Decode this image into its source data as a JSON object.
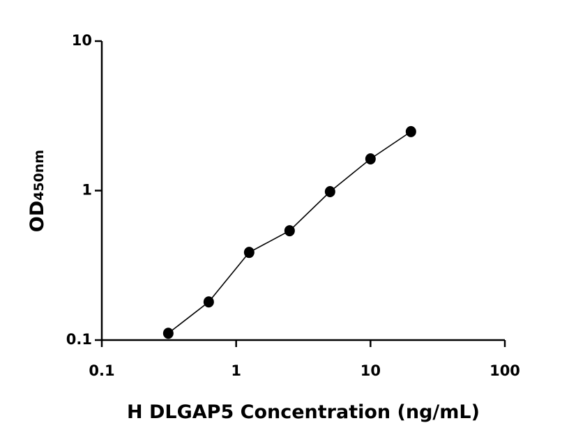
{
  "chart_data": {
    "type": "scatter",
    "xlabel": "H DLGAP5 Concentration (ng/mL)",
    "ylabel": "OD",
    "ylabel_subscript": "450nm",
    "xscale": "log",
    "yscale": "log",
    "xlim": [
      0.1,
      100
    ],
    "xticks": [
      0.1,
      1,
      10,
      100
    ],
    "ylim": [
      0.1,
      10
    ],
    "yticks": [
      0.1,
      1,
      10
    ],
    "fit_line": true,
    "color": "#000000",
    "series": [
      {
        "x": [
          0.3125,
          0.625,
          1.25,
          2.5,
          5,
          10,
          20
        ],
        "values": [
          0.111,
          0.18,
          0.386,
          0.539,
          0.984,
          1.63,
          2.48
        ]
      }
    ]
  }
}
